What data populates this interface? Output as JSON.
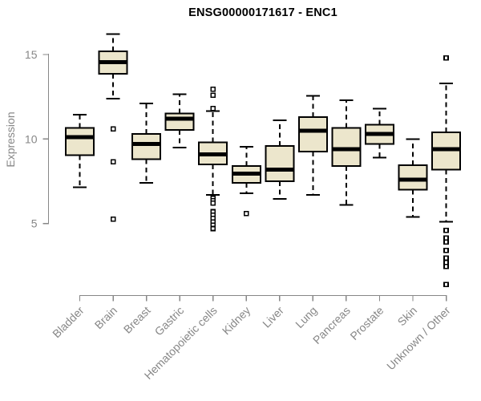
{
  "figure": {
    "background": "#ffffff"
  },
  "chart_data": {
    "type": "boxplot",
    "title": "ENSG00000171617 - ENC1",
    "ylabel": "Expression",
    "xlabel": "",
    "yticks": [
      5,
      10,
      15
    ],
    "ylim": [
      0.8,
      16.6
    ],
    "grid": false,
    "legend": null,
    "categories": [
      "Bladder",
      "Brain",
      "Breast",
      "Gastric",
      "Hematopoietic cells",
      "Kidney",
      "Liver",
      "Lung",
      "Pancreas",
      "Prostate",
      "Skin",
      "Unknown / Other"
    ],
    "series": [
      {
        "name": "Bladder",
        "low": 7.15,
        "q1": 9.05,
        "median": 10.1,
        "q3": 10.65,
        "high": 11.45,
        "outliers": []
      },
      {
        "name": "Brain",
        "low": 12.4,
        "q1": 13.85,
        "median": 14.55,
        "q3": 15.2,
        "high": 16.2,
        "outliers": [
          10.6,
          8.65,
          5.25
        ]
      },
      {
        "name": "Breast",
        "low": 7.4,
        "q1": 8.8,
        "median": 9.7,
        "q3": 10.3,
        "high": 12.1,
        "outliers": []
      },
      {
        "name": "Gastric",
        "low": 9.5,
        "q1": 10.55,
        "median": 11.2,
        "q3": 11.5,
        "high": 12.65,
        "outliers": []
      },
      {
        "name": "Hematopoietic cells",
        "low": 6.7,
        "q1": 8.5,
        "median": 9.1,
        "q3": 9.8,
        "high": 11.65,
        "outliers": [
          12.95,
          12.6,
          11.8,
          6.5,
          6.35,
          6.2,
          5.7,
          5.5,
          5.3,
          5.1,
          4.9,
          4.7
        ]
      },
      {
        "name": "Kidney",
        "low": 6.8,
        "q1": 7.4,
        "median": 7.95,
        "q3": 8.4,
        "high": 9.55,
        "outliers": [
          5.6
        ]
      },
      {
        "name": "Liver",
        "low": 6.45,
        "q1": 7.5,
        "median": 8.2,
        "q3": 9.6,
        "high": 11.1,
        "outliers": []
      },
      {
        "name": "Lung",
        "low": 6.7,
        "q1": 9.25,
        "median": 10.5,
        "q3": 11.3,
        "high": 12.55,
        "outliers": []
      },
      {
        "name": "Pancreas",
        "low": 6.1,
        "q1": 8.4,
        "median": 9.4,
        "q3": 10.65,
        "high": 12.3,
        "outliers": []
      },
      {
        "name": "Prostate",
        "low": 8.9,
        "q1": 9.7,
        "median": 10.3,
        "q3": 10.85,
        "high": 11.8,
        "outliers": []
      },
      {
        "name": "Skin",
        "low": 5.4,
        "q1": 7.0,
        "median": 7.6,
        "q3": 8.45,
        "high": 10.0,
        "outliers": []
      },
      {
        "name": "Unknown / Other",
        "low": 5.1,
        "q1": 8.2,
        "median": 9.4,
        "q3": 10.4,
        "high": 13.3,
        "outliers": [
          14.8,
          4.6,
          4.15,
          3.9,
          3.4,
          2.95,
          2.7,
          2.45,
          1.4
        ]
      }
    ],
    "colors": {
      "box_fill": "#ece6cc",
      "box_stroke": "#000000",
      "median": "#000000",
      "whisker": "#000000",
      "outlier_stroke": "#000000",
      "outlier_fill": "#ffffff",
      "axis": "#878787",
      "title": "#000000"
    }
  }
}
